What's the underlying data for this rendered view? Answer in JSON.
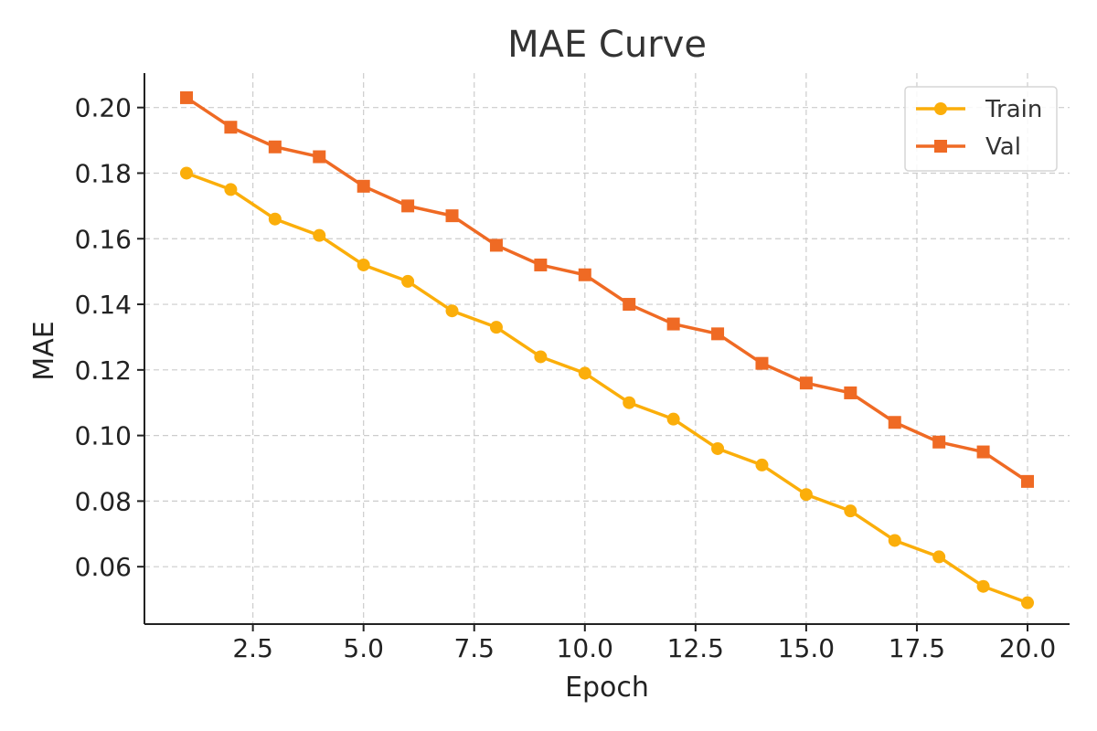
{
  "chart_data": {
    "type": "line",
    "title": "MAE Curve",
    "xlabel": "Epoch",
    "ylabel": "MAE",
    "xlim": [
      0.05,
      20.95
    ],
    "ylim": [
      0.0425,
      0.2105
    ],
    "xticks": [
      2.5,
      5.0,
      7.5,
      10.0,
      12.5,
      15.0,
      17.5,
      20.0
    ],
    "xtick_labels": [
      "2.5",
      "5.0",
      "7.5",
      "10.0",
      "12.5",
      "15.0",
      "17.5",
      "20.0"
    ],
    "yticks": [
      0.06,
      0.08,
      0.1,
      0.12,
      0.14,
      0.16,
      0.18,
      0.2
    ],
    "ytick_labels": [
      "0.06",
      "0.08",
      "0.10",
      "0.12",
      "0.14",
      "0.16",
      "0.18",
      "0.20"
    ],
    "grid": true,
    "legend_position": "top-right",
    "x": [
      1,
      2,
      3,
      4,
      5,
      6,
      7,
      8,
      9,
      10,
      11,
      12,
      13,
      14,
      15,
      16,
      17,
      18,
      19,
      20
    ],
    "series": [
      {
        "name": "Train",
        "marker": "circle",
        "color": "#FBAE0A",
        "values": [
          0.18,
          0.175,
          0.166,
          0.161,
          0.152,
          0.147,
          0.138,
          0.133,
          0.124,
          0.119,
          0.11,
          0.105,
          0.096,
          0.091,
          0.082,
          0.077,
          0.068,
          0.063,
          0.054,
          0.049
        ]
      },
      {
        "name": "Val",
        "marker": "square",
        "color": "#EF6A24",
        "values": [
          0.203,
          0.194,
          0.188,
          0.185,
          0.176,
          0.17,
          0.167,
          0.158,
          0.152,
          0.149,
          0.14,
          0.134,
          0.131,
          0.122,
          0.116,
          0.113,
          0.104,
          0.098,
          0.095,
          0.086
        ]
      }
    ]
  }
}
